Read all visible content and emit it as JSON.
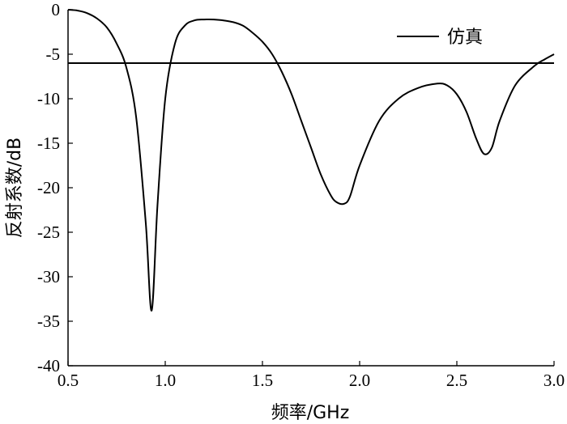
{
  "chart_data": {
    "type": "line",
    "xlabel": "频率/GHz",
    "ylabel": "反射系数/dB",
    "xlim": [
      0.5,
      3.0
    ],
    "ylim": [
      -40,
      0
    ],
    "x_ticks": [
      0.5,
      1.0,
      1.5,
      2.0,
      2.5,
      3.0
    ],
    "x_tick_labels": [
      "0.5",
      "1.0",
      "1.5",
      "2.0",
      "2.5",
      "3.0"
    ],
    "y_ticks": [
      0,
      -5,
      -10,
      -15,
      -20,
      -25,
      -30,
      -35,
      -40
    ],
    "y_tick_labels": [
      "0",
      "-5",
      "-10",
      "-15",
      "-20",
      "-25",
      "-30",
      "-35",
      "-40"
    ],
    "grid": false,
    "legend": {
      "position": "top-right",
      "entries": [
        "仿真"
      ]
    },
    "series": [
      {
        "name": "仿真",
        "color": "#000000",
        "x": [
          0.5,
          0.55,
          0.6,
          0.65,
          0.7,
          0.75,
          0.8,
          0.85,
          0.9,
          0.93,
          0.96,
          1.0,
          1.05,
          1.1,
          1.15,
          1.2,
          1.25,
          1.3,
          1.35,
          1.4,
          1.45,
          1.5,
          1.55,
          1.6,
          1.65,
          1.7,
          1.75,
          1.8,
          1.85,
          1.88,
          1.92,
          1.95,
          2.0,
          2.1,
          2.2,
          2.3,
          2.4,
          2.45,
          2.5,
          2.55,
          2.6,
          2.64,
          2.68,
          2.72,
          2.8,
          2.9,
          2.95,
          3.0
        ],
        "values": [
          0,
          -0.1,
          -0.4,
          -1.0,
          -2.0,
          -3.8,
          -6.5,
          -12,
          -24,
          -33.8,
          -22,
          -10,
          -3.8,
          -1.8,
          -1.2,
          -1.1,
          -1.1,
          -1.2,
          -1.4,
          -1.8,
          -2.6,
          -3.6,
          -5.0,
          -7.0,
          -9.5,
          -12.5,
          -15.5,
          -18.5,
          -20.8,
          -21.6,
          -21.8,
          -21.0,
          -17.5,
          -12.5,
          -10.0,
          -8.8,
          -8.3,
          -8.5,
          -9.5,
          -11.5,
          -14.5,
          -16.2,
          -15.5,
          -12.5,
          -8.5,
          -6.3,
          -5.6,
          -5.0
        ]
      },
      {
        "name": "",
        "color": "#000000",
        "x": [
          0.5,
          3.0
        ],
        "values": [
          -6,
          -6
        ]
      }
    ]
  }
}
